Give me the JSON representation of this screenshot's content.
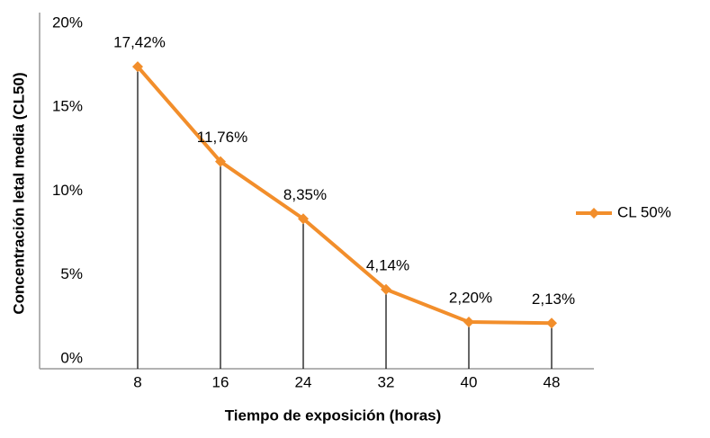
{
  "chart_data": {
    "type": "line",
    "x_label": "Tiempo de exposición (horas)",
    "y_label": "Concentración letal media (CL50)",
    "categories": [
      "8",
      "16",
      "24",
      "32",
      "40",
      "48"
    ],
    "series": [
      {
        "name": "CL 50%",
        "color": "#f28e2b",
        "values": [
          17.42,
          11.76,
          8.35,
          4.14,
          2.2,
          2.13
        ],
        "value_labels": [
          "17,42%",
          "11,76%",
          "8,35%",
          "4,14%",
          "2,20%",
          "2,13%"
        ]
      }
    ],
    "ylim": [
      0,
      20
    ],
    "yticks": [
      {
        "value": 0,
        "label": "0%"
      },
      {
        "value": 5,
        "label": "5%"
      },
      {
        "value": 10,
        "label": "10%"
      },
      {
        "value": 15,
        "label": "15%"
      },
      {
        "value": 20,
        "label": "20%"
      }
    ],
    "drop_lines": true,
    "legend": "right"
  }
}
